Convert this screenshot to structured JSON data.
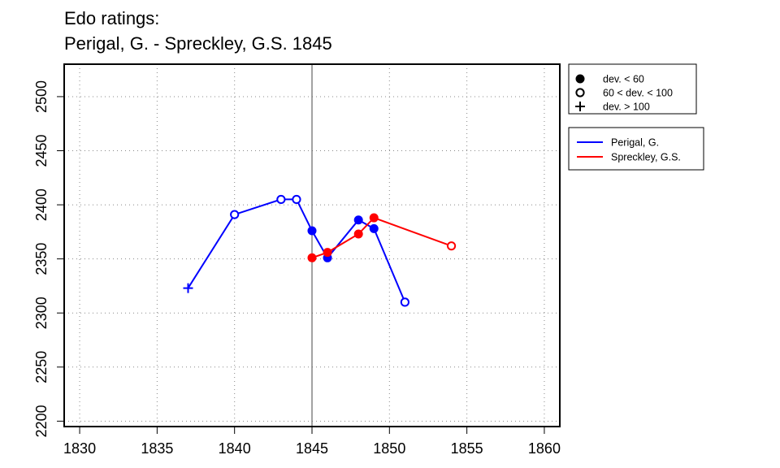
{
  "chart_data": {
    "type": "line",
    "title_lines": [
      "Edo ratings:",
      "Perigal, G. - Spreckley, G.S. 1845"
    ],
    "xlabel": "",
    "ylabel": "",
    "xlim": [
      1829,
      1861
    ],
    "ylim": [
      2195,
      2530
    ],
    "x_ticks": [
      1830,
      1835,
      1840,
      1845,
      1850,
      1855,
      1860
    ],
    "y_ticks": [
      2200,
      2250,
      2300,
      2350,
      2400,
      2450,
      2500
    ],
    "x_tick_labels": [
      "1830",
      "1835",
      "1840",
      "1845",
      "1850",
      "1855",
      "1860"
    ],
    "y_tick_labels": [
      "2200",
      "2250",
      "2300",
      "2350",
      "2400",
      "2450",
      "2500"
    ],
    "grid": true,
    "reference_line_x": 1845,
    "series": [
      {
        "name": "Perigal, G.",
        "color": "#0000ff",
        "points": [
          {
            "x": 1837,
            "y": 2323,
            "dev": "high"
          },
          {
            "x": 1840,
            "y": 2391,
            "dev": "mid"
          },
          {
            "x": 1843,
            "y": 2405,
            "dev": "mid"
          },
          {
            "x": 1844,
            "y": 2405,
            "dev": "mid"
          },
          {
            "x": 1845,
            "y": 2376,
            "dev": "low"
          },
          {
            "x": 1846,
            "y": 2351,
            "dev": "low"
          },
          {
            "x": 1848,
            "y": 2386,
            "dev": "low"
          },
          {
            "x": 1849,
            "y": 2378,
            "dev": "low"
          },
          {
            "x": 1851,
            "y": 2310,
            "dev": "mid"
          }
        ]
      },
      {
        "name": "Spreckley, G.S.",
        "color": "#ff0000",
        "points": [
          {
            "x": 1845,
            "y": 2351,
            "dev": "low"
          },
          {
            "x": 1846,
            "y": 2356,
            "dev": "low"
          },
          {
            "x": 1848,
            "y": 2373,
            "dev": "low"
          },
          {
            "x": 1849,
            "y": 2388,
            "dev": "low"
          },
          {
            "x": 1854,
            "y": 2362,
            "dev": "mid"
          }
        ]
      }
    ],
    "symbol_legend": [
      {
        "key": "low",
        "label": "dev. < 60",
        "symbol": "filled-circle-icon"
      },
      {
        "key": "mid",
        "label": "60 < dev. < 100",
        "symbol": "open-circle-icon"
      },
      {
        "key": "high",
        "label": "dev. > 100",
        "symbol": "plus-icon"
      }
    ],
    "legend_position": "right"
  }
}
